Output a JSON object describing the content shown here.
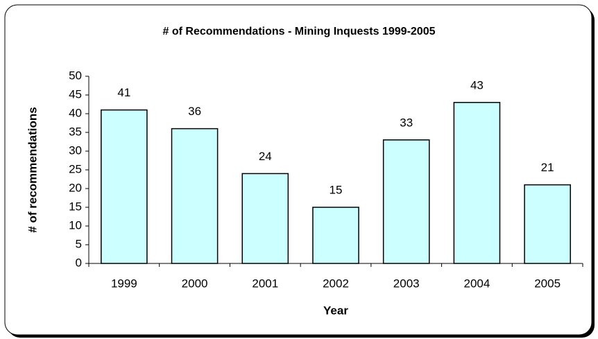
{
  "chart_data": {
    "type": "bar",
    "title": "# of Recommendations - Mining Inquests 1999-2005",
    "x_label": "Year",
    "y_label": "# of recommendations",
    "categories": [
      "1999",
      "2000",
      "2001",
      "2002",
      "2003",
      "2004",
      "2005"
    ],
    "values": [
      41,
      36,
      24,
      15,
      33,
      43,
      21
    ],
    "color": "#ccffff",
    "ylim": [
      0,
      50
    ],
    "yticks": [
      0,
      5,
      10,
      15,
      20,
      25,
      30,
      35,
      40,
      45,
      50
    ],
    "grid": false
  }
}
